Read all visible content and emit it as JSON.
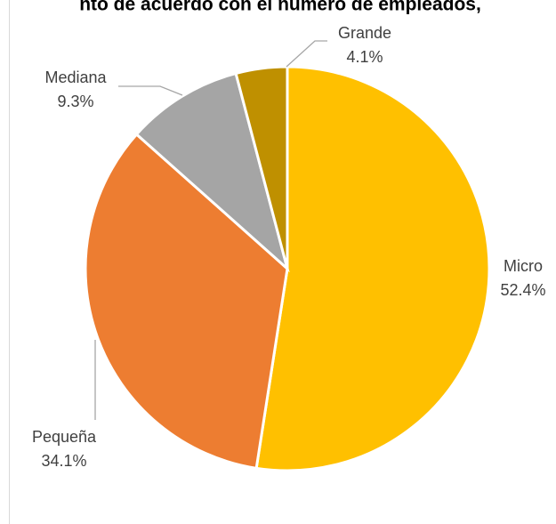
{
  "chart_data": {
    "type": "pie",
    "title": "nto de acuerdo con el número de empleados,",
    "categories": [
      "Micro",
      "Pequeña",
      "Mediana",
      "Grande"
    ],
    "values": [
      52.4,
      34.1,
      9.3,
      4.1
    ],
    "value_labels": [
      "52.4%",
      "34.1%",
      "9.3%",
      "4.1%"
    ],
    "colors": [
      "#FFC000",
      "#ED7D31",
      "#A5A5A5",
      "#BF9000"
    ]
  }
}
